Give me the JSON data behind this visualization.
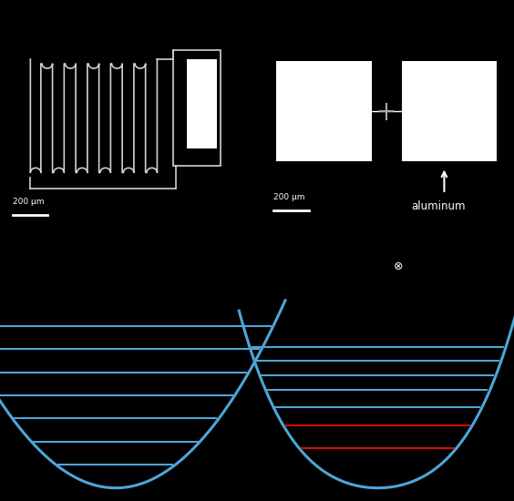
{
  "bg_color": "#000000",
  "panel_bg_left": "#787878",
  "panel_bg_right": "#888888",
  "coil_color": "#d0d0d0",
  "pad_color": "#ffffff",
  "scale_bar_color": "#ffffff",
  "scale_bar_text": "200 μm",
  "aluminum_text": "aluminum",
  "arrow_color": "#ffffff",
  "text_color": "#ffffff",
  "cross_symbol": "⊗",
  "cross_color": "#ffffff",
  "pot_color": "#4da6d8",
  "level_color_blue": "#4da6d8",
  "level_color_red": "#cc1100",
  "num_harmonic_levels": 7,
  "num_anharmonic_blue": 5,
  "num_anharmonic_red": 2,
  "lw_coil": 1.2,
  "lw_pot": 2.2,
  "lw_level": 1.5
}
